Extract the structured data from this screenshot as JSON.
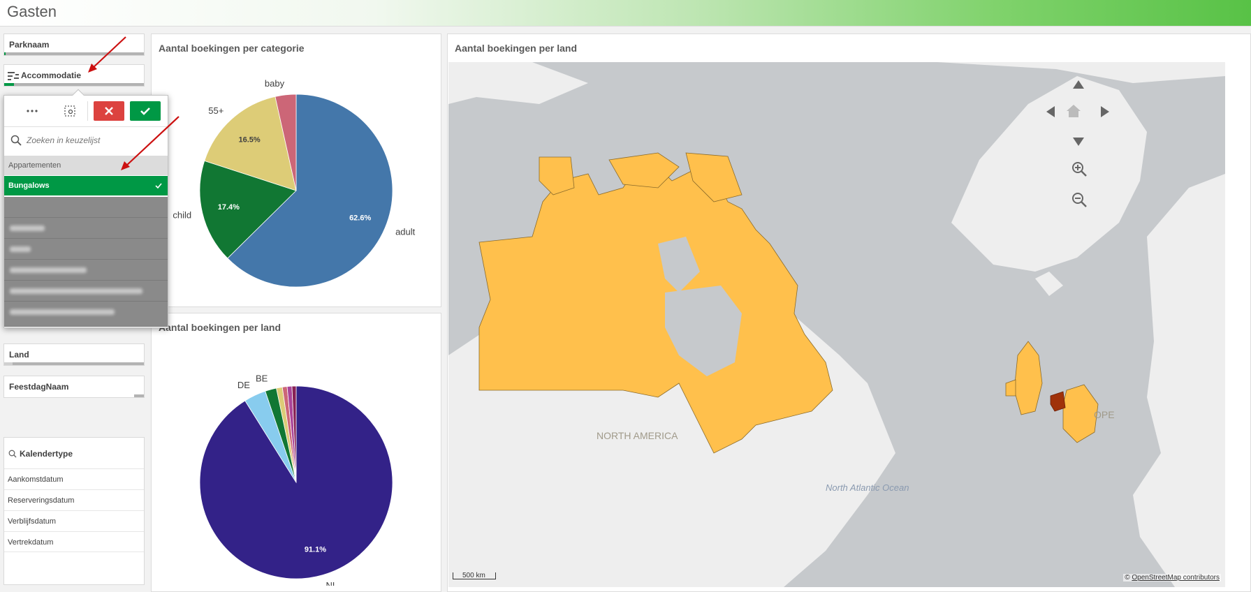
{
  "header": {
    "title": "Gasten"
  },
  "filters": {
    "parknaam": "Parknaam",
    "accommodatie": "Accommodatie",
    "land": "Land",
    "feestdagnaam": "FeestdagNaam"
  },
  "dropdown": {
    "search_placeholder": "Zoeken in keuzelijst",
    "items": [
      {
        "label": "Appartementen",
        "state": "alternative"
      },
      {
        "label": "Bungalows",
        "state": "selected"
      }
    ]
  },
  "calendar": {
    "title": "Kalendertype",
    "items": [
      "Aankomstdatum",
      "Reserveringsdatum",
      "Verblijfsdatum",
      "Vertrekdatum"
    ]
  },
  "panels": {
    "categorie_title": "Aantal boekingen per categorie",
    "land_title": "Aantal boekingen per land",
    "map_title": "Aantal boekingen per land"
  },
  "chart_data": [
    {
      "type": "pie",
      "slices": [
        {
          "label": "adult",
          "value": 62.6,
          "display": "62.6%",
          "color": "#4477aa"
        },
        {
          "label": "child",
          "value": 17.4,
          "display": "17.4%",
          "color": "#117733"
        },
        {
          "label": "55+",
          "value": 16.5,
          "display": "16.5%",
          "color": "#ddcc77"
        },
        {
          "label": "baby",
          "value": 3.5,
          "display": "",
          "color": "#cc6677"
        }
      ]
    },
    {
      "type": "pie",
      "slices": [
        {
          "label": "NL",
          "value": 91.1,
          "display": "91.1%",
          "color": "#332288"
        },
        {
          "label": "DE",
          "value": 3.7,
          "display": "",
          "color": "#88ccee"
        },
        {
          "label": "BE",
          "value": 1.9,
          "display": "",
          "color": "#117733"
        },
        {
          "label": "",
          "value": 1.0,
          "display": "",
          "color": "#ddcc77"
        },
        {
          "label": "",
          "value": 0.8,
          "display": "",
          "color": "#cc6677"
        },
        {
          "label": "",
          "value": 0.8,
          "display": "",
          "color": "#aa4499"
        },
        {
          "label": "",
          "value": 0.7,
          "display": "",
          "color": "#882255"
        }
      ]
    }
  ],
  "map": {
    "labels": {
      "north_america": "NORTH AMERICA",
      "europe": "OPE",
      "ocean": "North Atlantic Ocean"
    },
    "scale": "500 km",
    "attribution_prefix": "©",
    "attribution_link": "OpenStreetMap contributors",
    "colors": {
      "land": "#ffc04c",
      "highlight": "#a0320a",
      "water": "#c6c9cc",
      "base": "#eeeeee"
    }
  }
}
